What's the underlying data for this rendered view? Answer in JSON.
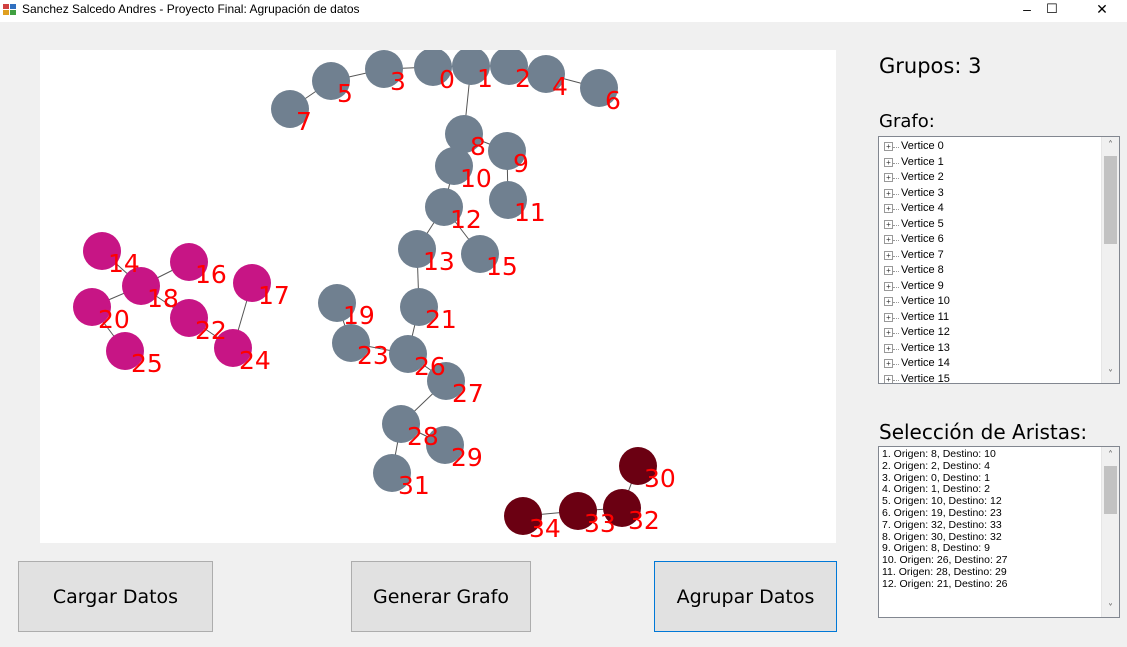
{
  "window": {
    "title": "Sanchez Salcedo Andres - Proyecto Final: Agrupación de datos",
    "minimize_glyph": "–",
    "maximize_glyph": "☐",
    "close_glyph": "✕"
  },
  "colors": {
    "node_default": "#708090",
    "group_magenta": "#c71585",
    "group_maroon": "#6b0012",
    "label": "#ff0000",
    "edge": "#555555"
  },
  "graph": {
    "vertices": [
      {
        "id": 0,
        "label": "0",
        "group": "default"
      },
      {
        "id": 1,
        "label": "1",
        "group": "default"
      },
      {
        "id": 2,
        "label": "2",
        "group": "default"
      },
      {
        "id": 3,
        "label": "3",
        "group": "default"
      },
      {
        "id": 4,
        "label": "4",
        "group": "default"
      },
      {
        "id": 5,
        "label": "5",
        "group": "default"
      },
      {
        "id": 6,
        "label": "6",
        "group": "default"
      },
      {
        "id": 7,
        "label": "7",
        "group": "default"
      },
      {
        "id": 8,
        "label": "8",
        "group": "default"
      },
      {
        "id": 9,
        "label": "9",
        "group": "default"
      },
      {
        "id": 10,
        "label": "10",
        "group": "default"
      },
      {
        "id": 11,
        "label": "11",
        "group": "default"
      },
      {
        "id": 12,
        "label": "12",
        "group": "default"
      },
      {
        "id": 13,
        "label": "13",
        "group": "default"
      },
      {
        "id": 14,
        "label": "14",
        "group": "magenta"
      },
      {
        "id": 15,
        "label": "15",
        "group": "default"
      },
      {
        "id": 16,
        "label": "16",
        "group": "magenta"
      },
      {
        "id": 17,
        "label": "17",
        "group": "magenta"
      },
      {
        "id": 18,
        "label": "18",
        "group": "magenta"
      },
      {
        "id": 19,
        "label": "19",
        "group": "default"
      },
      {
        "id": 20,
        "label": "20",
        "group": "magenta"
      },
      {
        "id": 21,
        "label": "21",
        "group": "default"
      },
      {
        "id": 22,
        "label": "22",
        "group": "magenta"
      },
      {
        "id": 23,
        "label": "23",
        "group": "default"
      },
      {
        "id": 24,
        "label": "24",
        "group": "magenta"
      },
      {
        "id": 25,
        "label": "25",
        "group": "magenta"
      },
      {
        "id": 26,
        "label": "26",
        "group": "default"
      },
      {
        "id": 27,
        "label": "27",
        "group": "default"
      },
      {
        "id": 28,
        "label": "28",
        "group": "default"
      },
      {
        "id": 29,
        "label": "29",
        "group": "default"
      },
      {
        "id": 30,
        "label": "30",
        "group": "maroon"
      },
      {
        "id": 31,
        "label": "31",
        "group": "default"
      },
      {
        "id": 32,
        "label": "32",
        "group": "maroon"
      },
      {
        "id": 33,
        "label": "33",
        "group": "maroon"
      },
      {
        "id": 34,
        "label": "34",
        "group": "maroon"
      }
    ],
    "edges": [
      [
        8,
        10
      ],
      [
        2,
        4
      ],
      [
        0,
        1
      ],
      [
        1,
        2
      ],
      [
        10,
        12
      ],
      [
        19,
        23
      ],
      [
        32,
        33
      ],
      [
        30,
        32
      ],
      [
        8,
        9
      ],
      [
        26,
        27
      ],
      [
        28,
        29
      ],
      [
        21,
        26
      ],
      [
        0,
        3
      ],
      [
        3,
        5
      ],
      [
        5,
        7
      ],
      [
        4,
        6
      ],
      [
        1,
        8
      ],
      [
        9,
        11
      ],
      [
        12,
        13
      ],
      [
        12,
        15
      ],
      [
        13,
        21
      ],
      [
        23,
        26
      ],
      [
        27,
        28
      ],
      [
        28,
        31
      ],
      [
        33,
        34
      ],
      [
        14,
        18
      ],
      [
        16,
        18
      ],
      [
        18,
        20
      ],
      [
        18,
        22
      ],
      [
        20,
        25
      ],
      [
        17,
        24
      ],
      [
        22,
        24
      ]
    ]
  },
  "sidebar": {
    "groups_label": "Grupos: 3",
    "graph_label": "Grafo:",
    "tree_items": [
      "Vertice 0",
      "Vertice 1",
      "Vertice 2",
      "Vertice 3",
      "Vertice 4",
      "Vertice 5",
      "Vertice 6",
      "Vertice 7",
      "Vertice 8",
      "Vertice 9",
      "Vertice 10",
      "Vertice 11",
      "Vertice 12",
      "Vertice 13",
      "Vertice 14",
      "Vertice 15"
    ],
    "tree_expander_glyph": "+",
    "edges_label": "Selección de Aristas:",
    "edge_items": [
      "1. Origen: 8, Destino: 10",
      "2. Origen: 2, Destino: 4",
      "3. Origen: 0, Destino: 1",
      "4. Origen: 1, Destino: 2",
      "5. Origen: 10, Destino: 12",
      "6. Origen: 19, Destino: 23",
      "7. Origen: 32, Destino: 33",
      "8. Origen: 30, Destino: 32",
      "9. Origen: 8, Destino: 9",
      "10. Origen: 26, Destino: 27",
      "11. Origen: 28, Destino: 29",
      "12. Origen: 21, Destino: 26"
    ],
    "scroll_up_glyph": "˄",
    "scroll_down_glyph": "˅"
  },
  "buttons": {
    "load": "Cargar Datos",
    "generate": "Generar Grafo",
    "group": "Agrupar Datos"
  }
}
